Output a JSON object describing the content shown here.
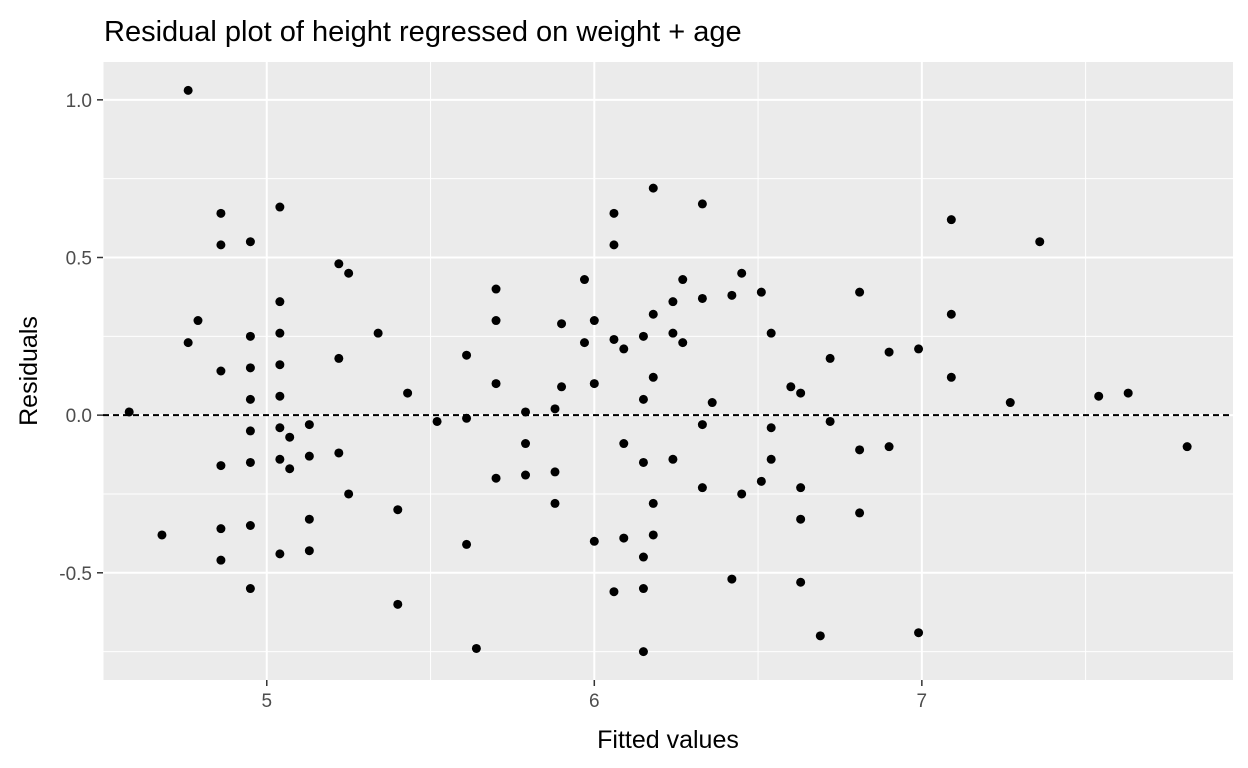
{
  "chart_data": {
    "type": "scatter",
    "title": "Residual plot of height regressed on weight + age",
    "xlabel": "Fitted values",
    "ylabel": "Residuals",
    "xlim": [
      4.5,
      7.95
    ],
    "ylim": [
      -0.84,
      1.12
    ],
    "x_ticks": [
      5,
      6,
      7
    ],
    "x_tick_labels": [
      "5",
      "6",
      "7"
    ],
    "y_ticks": [
      -0.5,
      0.0,
      0.5,
      1.0
    ],
    "y_tick_labels": [
      "-0.5",
      "0.0",
      "0.5",
      "1.0"
    ],
    "x_minor_ticks": [
      4.5,
      5.5,
      6.5,
      7.5
    ],
    "y_minor_ticks": [
      -0.75,
      -0.25,
      0.25,
      0.75
    ],
    "reference_line": {
      "y": 0,
      "style": "dashed"
    },
    "grid": true,
    "background": "#ebebeb",
    "grid_color": "#ffffff",
    "point_color": "#000000",
    "points": [
      [
        4.58,
        0.01
      ],
      [
        4.68,
        -0.38
      ],
      [
        4.76,
        1.03
      ],
      [
        4.76,
        0.23
      ],
      [
        4.79,
        0.3
      ],
      [
        4.86,
        0.64
      ],
      [
        4.86,
        0.54
      ],
      [
        4.86,
        0.14
      ],
      [
        4.86,
        -0.16
      ],
      [
        4.86,
        -0.36
      ],
      [
        4.86,
        -0.46
      ],
      [
        4.95,
        0.55
      ],
      [
        4.95,
        0.25
      ],
      [
        4.95,
        0.15
      ],
      [
        4.95,
        0.05
      ],
      [
        4.95,
        -0.05
      ],
      [
        4.95,
        -0.15
      ],
      [
        4.95,
        -0.35
      ],
      [
        4.95,
        -0.55
      ],
      [
        5.04,
        0.66
      ],
      [
        5.04,
        0.36
      ],
      [
        5.04,
        0.26
      ],
      [
        5.04,
        0.16
      ],
      [
        5.04,
        0.06
      ],
      [
        5.04,
        -0.04
      ],
      [
        5.04,
        -0.14
      ],
      [
        5.04,
        -0.44
      ],
      [
        5.07,
        -0.07
      ],
      [
        5.07,
        -0.17
      ],
      [
        5.13,
        -0.03
      ],
      [
        5.13,
        -0.13
      ],
      [
        5.13,
        -0.33
      ],
      [
        5.13,
        -0.43
      ],
      [
        5.22,
        0.48
      ],
      [
        5.22,
        0.18
      ],
      [
        5.22,
        -0.12
      ],
      [
        5.25,
        0.45
      ],
      [
        5.25,
        -0.25
      ],
      [
        5.34,
        0.26
      ],
      [
        5.4,
        -0.3
      ],
      [
        5.4,
        -0.6
      ],
      [
        5.43,
        0.07
      ],
      [
        5.52,
        -0.02
      ],
      [
        5.61,
        0.19
      ],
      [
        5.61,
        -0.01
      ],
      [
        5.61,
        -0.41
      ],
      [
        5.64,
        -0.74
      ],
      [
        5.7,
        0.4
      ],
      [
        5.7,
        0.3
      ],
      [
        5.7,
        0.1
      ],
      [
        5.7,
        -0.2
      ],
      [
        5.79,
        0.01
      ],
      [
        5.79,
        -0.09
      ],
      [
        5.79,
        -0.19
      ],
      [
        5.88,
        0.02
      ],
      [
        5.88,
        -0.18
      ],
      [
        5.88,
        -0.28
      ],
      [
        5.9,
        0.29
      ],
      [
        5.9,
        0.09
      ],
      [
        5.97,
        0.43
      ],
      [
        5.97,
        0.23
      ],
      [
        6.0,
        0.3
      ],
      [
        6.0,
        0.1
      ],
      [
        6.0,
        -0.4
      ],
      [
        6.06,
        0.64
      ],
      [
        6.06,
        0.54
      ],
      [
        6.06,
        0.24
      ],
      [
        6.06,
        -0.56
      ],
      [
        6.09,
        0.21
      ],
      [
        6.09,
        -0.09
      ],
      [
        6.09,
        -0.39
      ],
      [
        6.15,
        0.25
      ],
      [
        6.15,
        0.05
      ],
      [
        6.15,
        -0.15
      ],
      [
        6.15,
        -0.45
      ],
      [
        6.15,
        -0.55
      ],
      [
        6.15,
        -0.75
      ],
      [
        6.18,
        0.72
      ],
      [
        6.18,
        0.32
      ],
      [
        6.18,
        0.12
      ],
      [
        6.18,
        -0.28
      ],
      [
        6.18,
        -0.38
      ],
      [
        6.24,
        0.36
      ],
      [
        6.24,
        0.26
      ],
      [
        6.24,
        -0.14
      ],
      [
        6.27,
        0.43
      ],
      [
        6.27,
        0.23
      ],
      [
        6.33,
        0.67
      ],
      [
        6.33,
        0.37
      ],
      [
        6.33,
        -0.03
      ],
      [
        6.33,
        -0.23
      ],
      [
        6.36,
        0.04
      ],
      [
        6.42,
        0.38
      ],
      [
        6.42,
        -0.52
      ],
      [
        6.45,
        0.45
      ],
      [
        6.45,
        -0.25
      ],
      [
        6.51,
        0.39
      ],
      [
        6.51,
        -0.21
      ],
      [
        6.54,
        0.26
      ],
      [
        6.54,
        -0.04
      ],
      [
        6.54,
        -0.14
      ],
      [
        6.6,
        0.09
      ],
      [
        6.63,
        0.07
      ],
      [
        6.63,
        -0.23
      ],
      [
        6.63,
        -0.33
      ],
      [
        6.63,
        -0.53
      ],
      [
        6.69,
        -0.7
      ],
      [
        6.72,
        0.18
      ],
      [
        6.72,
        -0.02
      ],
      [
        6.81,
        0.39
      ],
      [
        6.81,
        -0.11
      ],
      [
        6.81,
        -0.31
      ],
      [
        6.9,
        0.2
      ],
      [
        6.9,
        -0.1
      ],
      [
        6.99,
        0.21
      ],
      [
        6.99,
        -0.69
      ],
      [
        7.09,
        0.62
      ],
      [
        7.09,
        0.32
      ],
      [
        7.09,
        0.12
      ],
      [
        7.27,
        0.04
      ],
      [
        7.36,
        0.55
      ],
      [
        7.54,
        0.06
      ],
      [
        7.63,
        0.07
      ],
      [
        7.81,
        -0.1
      ]
    ]
  }
}
